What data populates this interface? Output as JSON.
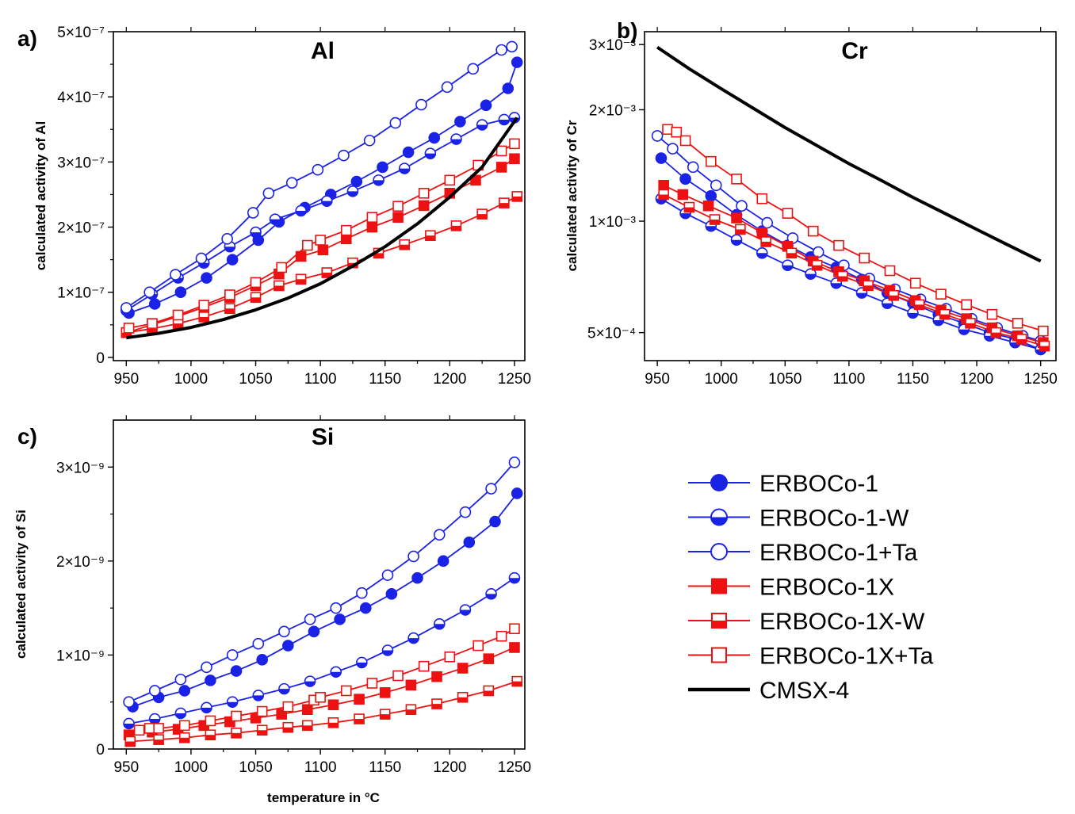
{
  "chart_data": [
    {
      "type": "line",
      "panel_label": "a)",
      "title": "Al",
      "xlabel": "",
      "ylabel": "calculated activity of Al",
      "xlim": [
        940,
        1258
      ],
      "ylim": [
        -5e-09,
        5e-07
      ],
      "yscale": "linear",
      "x_ticks": [
        950,
        1000,
        1050,
        1100,
        1150,
        1200,
        1250
      ],
      "x_tick_labels": [
        "950",
        "1000",
        "1050",
        "1100",
        "1150",
        "1200",
        "1250"
      ],
      "y_ticks": [
        0,
        1e-07,
        2e-07,
        3e-07,
        4e-07,
        5e-07
      ],
      "y_tick_labels": [
        "0",
        "1×10⁻⁷",
        "2×10⁻⁷",
        "3×10⁻⁷",
        "4×10⁻⁷",
        "5×10⁻⁷"
      ],
      "series": [
        {
          "name": "ERBOCo-1",
          "x": [
            952,
            972,
            992,
            1012,
            1032,
            1052,
            1068,
            1088,
            1108,
            1128,
            1148,
            1168,
            1188,
            1208,
            1228,
            1245,
            1252
          ],
          "values": [
            6.8e-08,
            8.2e-08,
            1e-07,
            1.22e-07,
            1.5e-07,
            1.8e-07,
            2.08e-07,
            2.3e-07,
            2.5e-07,
            2.7e-07,
            2.92e-07,
            3.15e-07,
            3.37e-07,
            3.62e-07,
            3.87e-07,
            4.13e-07,
            4.53e-07
          ]
        },
        {
          "name": "ERBOCo-1-W",
          "x": [
            950,
            970,
            990,
            1010,
            1030,
            1050,
            1065,
            1085,
            1105,
            1125,
            1145,
            1165,
            1185,
            1205,
            1225,
            1242,
            1250
          ],
          "values": [
            7.2e-08,
            9.7e-08,
            1.22e-07,
            1.45e-07,
            1.7e-07,
            1.92e-07,
            2.12e-07,
            2.25e-07,
            2.4e-07,
            2.55e-07,
            2.72e-07,
            2.9e-07,
            3.13e-07,
            3.35e-07,
            3.57e-07,
            3.65e-07,
            3.68e-07
          ]
        },
        {
          "name": "ERBOCo-1+Ta",
          "x": [
            950,
            968,
            988,
            1008,
            1028,
            1048,
            1060,
            1078,
            1098,
            1118,
            1138,
            1158,
            1178,
            1198,
            1218,
            1240,
            1248
          ],
          "values": [
            7.6e-08,
            1e-07,
            1.27e-07,
            1.52e-07,
            1.82e-07,
            2.22e-07,
            2.52e-07,
            2.68e-07,
            2.88e-07,
            3.1e-07,
            3.33e-07,
            3.6e-07,
            3.88e-07,
            4.15e-07,
            4.43e-07,
            4.72e-07,
            4.77e-07
          ]
        },
        {
          "name": "ERBOCo-1X",
          "x": [
            950,
            970,
            990,
            1010,
            1030,
            1050,
            1068,
            1085,
            1102,
            1120,
            1140,
            1160,
            1180,
            1200,
            1220,
            1240,
            1250
          ],
          "values": [
            3.8e-08,
            5e-08,
            6.3e-08,
            7.7e-08,
            9.2e-08,
            1.1e-07,
            1.28e-07,
            1.55e-07,
            1.65e-07,
            1.82e-07,
            2e-07,
            2.15e-07,
            2.33e-07,
            2.52e-07,
            2.72e-07,
            2.92e-07,
            3.05e-07
          ]
        },
        {
          "name": "ERBOCo-1X-W",
          "x": [
            950,
            970,
            990,
            1010,
            1030,
            1050,
            1068,
            1085,
            1105,
            1125,
            1145,
            1165,
            1185,
            1205,
            1225,
            1242,
            1252
          ],
          "values": [
            3.8e-08,
            4.4e-08,
            5.2e-08,
            6.2e-08,
            7.5e-08,
            9.2e-08,
            1.1e-07,
            1.2e-07,
            1.3e-07,
            1.45e-07,
            1.6e-07,
            1.73e-07,
            1.87e-07,
            2.02e-07,
            2.2e-07,
            2.37e-07,
            2.47e-07
          ]
        },
        {
          "name": "ERBOCo-1X+Ta",
          "x": [
            952,
            970,
            990,
            1010,
            1030,
            1050,
            1070,
            1090,
            1100,
            1120,
            1140,
            1160,
            1180,
            1200,
            1222,
            1240,
            1250
          ],
          "values": [
            4.5e-08,
            5.2e-08,
            6.5e-08,
            8e-08,
            9.6e-08,
            1.15e-07,
            1.38e-07,
            1.72e-07,
            1.8e-07,
            1.95e-07,
            2.15e-07,
            2.32e-07,
            2.52e-07,
            2.72e-07,
            2.95e-07,
            3.17e-07,
            3.28e-07
          ]
        }
      ],
      "reference_line": {
        "name": "CMSX-4",
        "x": [
          950,
          975,
          1000,
          1025,
          1050,
          1075,
          1100,
          1125,
          1150,
          1175,
          1200,
          1225,
          1252
        ],
        "values": [
          3e-08,
          3.7e-08,
          4.6e-08,
          5.8e-08,
          7.3e-08,
          9.1e-08,
          1.13e-07,
          1.4e-07,
          1.7e-07,
          2.05e-07,
          2.46e-07,
          2.92e-07,
          3.68e-07
        ]
      }
    },
    {
      "type": "line",
      "panel_label": "b)",
      "title": "Cr",
      "xlabel": "",
      "ylabel": "calculated activity of Cr",
      "xlim": [
        940,
        1262
      ],
      "ylim": [
        0.00042,
        0.00325
      ],
      "yscale": "log",
      "x_ticks": [
        950,
        1000,
        1050,
        1100,
        1150,
        1200,
        1250
      ],
      "x_tick_labels": [
        "950",
        "1000",
        "1050",
        "1100",
        "1150",
        "1200",
        "1250"
      ],
      "y_ticks": [
        0.0005,
        0.001,
        0.002,
        0.003
      ],
      "y_tick_labels": [
        "5×10⁻⁴",
        "1×10⁻³",
        "2×10⁻³",
        "3×10⁻³"
      ],
      "series": [
        {
          "name": "ERBOCo-1",
          "x": [
            953,
            972,
            992,
            1012,
            1032,
            1052,
            1070,
            1090,
            1110,
            1130,
            1150,
            1170,
            1190,
            1210,
            1230,
            1250
          ],
          "values": [
            0.00148,
            0.0013,
            0.00117,
            0.00104,
            0.00094,
            0.00086,
            0.0008,
            0.00075,
            0.000695,
            0.00064,
            0.0006,
            0.00056,
            0.00053,
            0.0005,
            0.00048,
            0.00045
          ]
        },
        {
          "name": "ERBOCo-1-W",
          "x": [
            953,
            972,
            992,
            1012,
            1032,
            1052,
            1070,
            1090,
            1110,
            1130,
            1150,
            1170,
            1190,
            1210,
            1230,
            1250
          ],
          "values": [
            0.00115,
            0.00105,
            0.00097,
            0.00089,
            0.00082,
            0.00076,
            0.00072,
            0.00068,
            0.00064,
            0.0006,
            0.000565,
            0.00054,
            0.00051,
            0.00049,
            0.00047,
            0.00045
          ]
        },
        {
          "name": "ERBOCo-1+Ta",
          "x": [
            950,
            962,
            978,
            996,
            1016,
            1036,
            1056,
            1076,
            1096,
            1116,
            1136,
            1156,
            1176,
            1196,
            1216,
            1236,
            1250
          ],
          "values": [
            0.0017,
            0.00157,
            0.0014,
            0.00125,
            0.0011,
            0.00099,
            0.0009,
            0.000825,
            0.00076,
            0.0007,
            0.000655,
            0.000615,
            0.00058,
            0.000545,
            0.000515,
            0.00049,
            0.000475
          ]
        },
        {
          "name": "ERBOCo-1X",
          "x": [
            955,
            970,
            990,
            1012,
            1032,
            1052,
            1072,
            1092,
            1112,
            1132,
            1152,
            1172,
            1192,
            1212,
            1232,
            1252
          ],
          "values": [
            0.00125,
            0.00118,
            0.0011,
            0.00102,
            0.00093,
            0.000855,
            0.00078,
            0.00073,
            0.00069,
            0.00065,
            0.00061,
            0.000575,
            0.000545,
            0.000515,
            0.00049,
            0.00047
          ]
        },
        {
          "name": "ERBOCo-1X-W",
          "x": [
            955,
            975,
            995,
            1015,
            1035,
            1055,
            1075,
            1095,
            1115,
            1135,
            1155,
            1175,
            1195,
            1215,
            1235,
            1253
          ],
          "values": [
            0.00118,
            0.00109,
            0.00101,
            0.00095,
            0.00088,
            0.00082,
            0.00076,
            0.00071,
            0.00067,
            0.00063,
            0.000595,
            0.00056,
            0.00053,
            0.0005,
            0.00048,
            0.00046
          ]
        },
        {
          "name": "ERBOCo-1X+Ta",
          "x": [
            958,
            965,
            972,
            992,
            1012,
            1032,
            1052,
            1072,
            1092,
            1112,
            1132,
            1152,
            1172,
            1192,
            1212,
            1232,
            1252
          ],
          "values": [
            0.00177,
            0.00174,
            0.00165,
            0.00145,
            0.0013,
            0.00115,
            0.00105,
            0.00094,
            0.00086,
            0.000795,
            0.000735,
            0.00068,
            0.000635,
            0.000595,
            0.00056,
            0.00053,
            0.000505
          ]
        }
      ],
      "reference_line": {
        "name": "CMSX-4",
        "x": [
          950,
          975,
          1000,
          1025,
          1050,
          1075,
          1100,
          1125,
          1150,
          1175,
          1200,
          1225,
          1250
        ],
        "values": [
          0.00295,
          0.00258,
          0.00228,
          0.00202,
          0.00179,
          0.0016,
          0.00143,
          0.00129,
          0.00116,
          0.00105,
          0.00095,
          0.00086,
          0.00078
        ]
      }
    },
    {
      "type": "line",
      "panel_label": "c)",
      "title": "Si",
      "xlabel": "temperature in °C",
      "ylabel": "calculated activity of Si",
      "xlim": [
        940,
        1258
      ],
      "ylim": [
        0,
        3.5e-09
      ],
      "yscale": "linear",
      "x_ticks": [
        950,
        1000,
        1050,
        1100,
        1150,
        1200,
        1250
      ],
      "x_tick_labels": [
        "950",
        "1000",
        "1050",
        "1100",
        "1150",
        "1200",
        "1250"
      ],
      "y_ticks": [
        0,
        1e-09,
        2e-09,
        3e-09
      ],
      "y_tick_labels": [
        "0",
        "1×10⁻⁹",
        "2×10⁻⁹",
        "3×10⁻⁹"
      ],
      "series": [
        {
          "name": "ERBOCo-1",
          "x": [
            955,
            975,
            995,
            1015,
            1035,
            1055,
            1075,
            1095,
            1115,
            1135,
            1155,
            1175,
            1195,
            1215,
            1235,
            1252
          ],
          "values": [
            4.5e-10,
            5.5e-10,
            6.2e-10,
            7.3e-10,
            8.3e-10,
            9.5e-10,
            1.1e-09,
            1.25e-09,
            1.38e-09,
            1.5e-09,
            1.65e-09,
            1.82e-09,
            2e-09,
            2.2e-09,
            2.42e-09,
            2.72e-09
          ]
        },
        {
          "name": "ERBOCo-1-W",
          "x": [
            952,
            972,
            992,
            1012,
            1032,
            1052,
            1072,
            1092,
            1112,
            1132,
            1152,
            1172,
            1192,
            1212,
            1232,
            1250
          ],
          "values": [
            2.7e-10,
            3.2e-10,
            3.8e-10,
            4.4e-10,
            5e-10,
            5.7e-10,
            6.4e-10,
            7.2e-10,
            8.2e-10,
            9.2e-10,
            1.05e-09,
            1.18e-09,
            1.33e-09,
            1.48e-09,
            1.65e-09,
            1.82e-09
          ]
        },
        {
          "name": "ERBOCo-1+Ta",
          "x": [
            952,
            972,
            992,
            1012,
            1032,
            1052,
            1072,
            1092,
            1112,
            1132,
            1152,
            1172,
            1192,
            1212,
            1232,
            1250
          ],
          "values": [
            5e-10,
            6.2e-10,
            7.4e-10,
            8.7e-10,
            1e-09,
            1.12e-09,
            1.25e-09,
            1.38e-09,
            1.5e-09,
            1.66e-09,
            1.85e-09,
            2.05e-09,
            2.28e-09,
            2.52e-09,
            2.77e-09,
            3.05e-09
          ]
        },
        {
          "name": "ERBOCo-1X",
          "x": [
            952,
            970,
            990,
            1010,
            1030,
            1050,
            1070,
            1090,
            1110,
            1130,
            1150,
            1170,
            1190,
            1210,
            1230,
            1250
          ],
          "values": [
            1.5e-10,
            1.8e-10,
            2.1e-10,
            2.5e-10,
            2.9e-10,
            3.3e-10,
            3.7e-10,
            4.2e-10,
            4.7e-10,
            5.3e-10,
            6e-10,
            6.8e-10,
            7.7e-10,
            8.6e-10,
            9.6e-10,
            1.08e-09
          ]
        },
        {
          "name": "ERBOCo-1X-W",
          "x": [
            953,
            975,
            995,
            1015,
            1035,
            1055,
            1075,
            1090,
            1110,
            1130,
            1150,
            1170,
            1190,
            1210,
            1230,
            1252
          ],
          "values": [
            8e-11,
            1e-10,
            1.2e-10,
            1.5e-10,
            1.7e-10,
            2e-10,
            2.3e-10,
            2.5e-10,
            2.8e-10,
            3.2e-10,
            3.7e-10,
            4.2e-10,
            4.8e-10,
            5.5e-10,
            6.2e-10,
            7.2e-10
          ]
        },
        {
          "name": "ERBOCo-1X+Ta",
          "x": [
            960,
            968,
            975,
            995,
            1015,
            1035,
            1055,
            1075,
            1095,
            1100,
            1120,
            1140,
            1160,
            1180,
            1200,
            1222,
            1240,
            1250
          ],
          "values": [
            2e-10,
            2.2e-10,
            2.2e-10,
            2.5e-10,
            3e-10,
            3.5e-10,
            4e-10,
            4.5e-10,
            5.2e-10,
            5.5e-10,
            6.2e-10,
            7e-10,
            7.8e-10,
            8.8e-10,
            9.8e-10,
            1.1e-09,
            1.2e-09,
            1.28e-09
          ]
        }
      ]
    }
  ],
  "legend": [
    {
      "name": "ERBOCo-1",
      "color": "#1a22e6",
      "marker": "circle",
      "fill": "full"
    },
    {
      "name": "ERBOCo-1-W",
      "color": "#1a22e6",
      "marker": "circle",
      "fill": "bottom-half"
    },
    {
      "name": "ERBOCo-1+Ta",
      "color": "#1a22e6",
      "marker": "circle",
      "fill": "none"
    },
    {
      "name": "ERBOCo-1X",
      "color": "#ee1111",
      "marker": "square",
      "fill": "full"
    },
    {
      "name": "ERBOCo-1X-W",
      "color": "#ee1111",
      "marker": "square",
      "fill": "bottom-half"
    },
    {
      "name": "ERBOCo-1X+Ta",
      "color": "#ee1111",
      "marker": "square",
      "fill": "none"
    },
    {
      "name": "CMSX-4",
      "color": "#000000",
      "marker": "none",
      "fill": "none"
    }
  ]
}
